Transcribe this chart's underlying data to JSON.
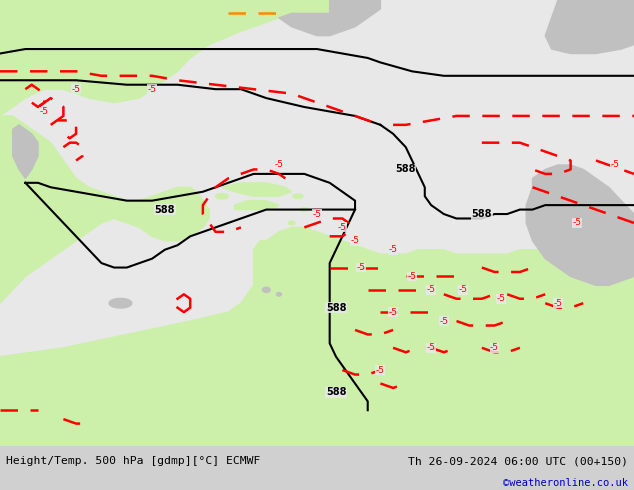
{
  "title_left": "Height/Temp. 500 hPa [gdmp][°C] ECMWF",
  "title_right": "Th 26-09-2024 06:00 UTC (00+150)",
  "copyright": "©weatheronline.co.uk",
  "bg_color": "#e8e8e8",
  "land_green": "#ccf0aa",
  "land_gray": "#c0c0c0",
  "bottom_bar_color": "#d0d0d0",
  "contour_black": "#000000",
  "contour_red": "#ff0000",
  "contour_orange": "#ff8800",
  "figsize": [
    6.34,
    4.9
  ],
  "dpi": 100,
  "bottom_bar_height": 0.09
}
